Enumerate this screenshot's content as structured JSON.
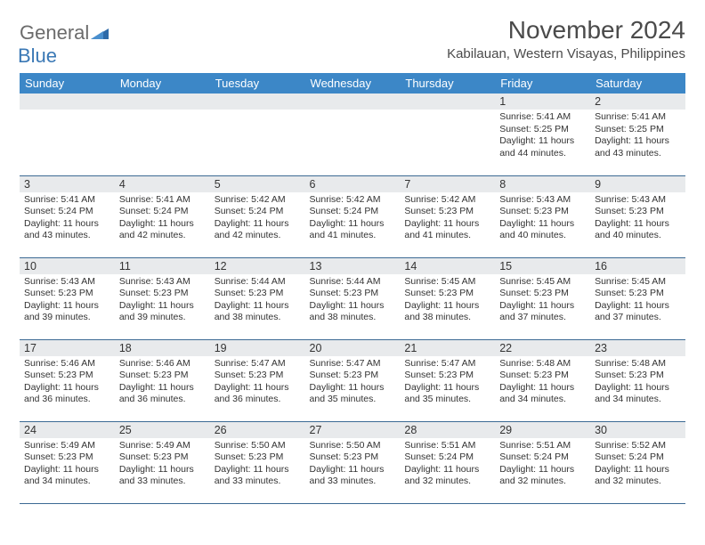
{
  "logo": {
    "part1": "General",
    "part2": "Blue"
  },
  "title": "November 2024",
  "location": "Kabilauan, Western Visayas, Philippines",
  "colors": {
    "header_bg": "#3c87c7",
    "header_fg": "#ffffff",
    "daynum_bg": "#e8eaec",
    "row_border": "#3c6a94",
    "logo_gray": "#6b6b6b",
    "logo_blue": "#3a78b5"
  },
  "dow": [
    "Sunday",
    "Monday",
    "Tuesday",
    "Wednesday",
    "Thursday",
    "Friday",
    "Saturday"
  ],
  "weeks": [
    [
      {
        "n": "",
        "sr": "",
        "ss": "",
        "dl": ""
      },
      {
        "n": "",
        "sr": "",
        "ss": "",
        "dl": ""
      },
      {
        "n": "",
        "sr": "",
        "ss": "",
        "dl": ""
      },
      {
        "n": "",
        "sr": "",
        "ss": "",
        "dl": ""
      },
      {
        "n": "",
        "sr": "",
        "ss": "",
        "dl": ""
      },
      {
        "n": "1",
        "sr": "Sunrise: 5:41 AM",
        "ss": "Sunset: 5:25 PM",
        "dl": "Daylight: 11 hours and 44 minutes."
      },
      {
        "n": "2",
        "sr": "Sunrise: 5:41 AM",
        "ss": "Sunset: 5:25 PM",
        "dl": "Daylight: 11 hours and 43 minutes."
      }
    ],
    [
      {
        "n": "3",
        "sr": "Sunrise: 5:41 AM",
        "ss": "Sunset: 5:24 PM",
        "dl": "Daylight: 11 hours and 43 minutes."
      },
      {
        "n": "4",
        "sr": "Sunrise: 5:41 AM",
        "ss": "Sunset: 5:24 PM",
        "dl": "Daylight: 11 hours and 42 minutes."
      },
      {
        "n": "5",
        "sr": "Sunrise: 5:42 AM",
        "ss": "Sunset: 5:24 PM",
        "dl": "Daylight: 11 hours and 42 minutes."
      },
      {
        "n": "6",
        "sr": "Sunrise: 5:42 AM",
        "ss": "Sunset: 5:24 PM",
        "dl": "Daylight: 11 hours and 41 minutes."
      },
      {
        "n": "7",
        "sr": "Sunrise: 5:42 AM",
        "ss": "Sunset: 5:23 PM",
        "dl": "Daylight: 11 hours and 41 minutes."
      },
      {
        "n": "8",
        "sr": "Sunrise: 5:43 AM",
        "ss": "Sunset: 5:23 PM",
        "dl": "Daylight: 11 hours and 40 minutes."
      },
      {
        "n": "9",
        "sr": "Sunrise: 5:43 AM",
        "ss": "Sunset: 5:23 PM",
        "dl": "Daylight: 11 hours and 40 minutes."
      }
    ],
    [
      {
        "n": "10",
        "sr": "Sunrise: 5:43 AM",
        "ss": "Sunset: 5:23 PM",
        "dl": "Daylight: 11 hours and 39 minutes."
      },
      {
        "n": "11",
        "sr": "Sunrise: 5:43 AM",
        "ss": "Sunset: 5:23 PM",
        "dl": "Daylight: 11 hours and 39 minutes."
      },
      {
        "n": "12",
        "sr": "Sunrise: 5:44 AM",
        "ss": "Sunset: 5:23 PM",
        "dl": "Daylight: 11 hours and 38 minutes."
      },
      {
        "n": "13",
        "sr": "Sunrise: 5:44 AM",
        "ss": "Sunset: 5:23 PM",
        "dl": "Daylight: 11 hours and 38 minutes."
      },
      {
        "n": "14",
        "sr": "Sunrise: 5:45 AM",
        "ss": "Sunset: 5:23 PM",
        "dl": "Daylight: 11 hours and 38 minutes."
      },
      {
        "n": "15",
        "sr": "Sunrise: 5:45 AM",
        "ss": "Sunset: 5:23 PM",
        "dl": "Daylight: 11 hours and 37 minutes."
      },
      {
        "n": "16",
        "sr": "Sunrise: 5:45 AM",
        "ss": "Sunset: 5:23 PM",
        "dl": "Daylight: 11 hours and 37 minutes."
      }
    ],
    [
      {
        "n": "17",
        "sr": "Sunrise: 5:46 AM",
        "ss": "Sunset: 5:23 PM",
        "dl": "Daylight: 11 hours and 36 minutes."
      },
      {
        "n": "18",
        "sr": "Sunrise: 5:46 AM",
        "ss": "Sunset: 5:23 PM",
        "dl": "Daylight: 11 hours and 36 minutes."
      },
      {
        "n": "19",
        "sr": "Sunrise: 5:47 AM",
        "ss": "Sunset: 5:23 PM",
        "dl": "Daylight: 11 hours and 36 minutes."
      },
      {
        "n": "20",
        "sr": "Sunrise: 5:47 AM",
        "ss": "Sunset: 5:23 PM",
        "dl": "Daylight: 11 hours and 35 minutes."
      },
      {
        "n": "21",
        "sr": "Sunrise: 5:47 AM",
        "ss": "Sunset: 5:23 PM",
        "dl": "Daylight: 11 hours and 35 minutes."
      },
      {
        "n": "22",
        "sr": "Sunrise: 5:48 AM",
        "ss": "Sunset: 5:23 PM",
        "dl": "Daylight: 11 hours and 34 minutes."
      },
      {
        "n": "23",
        "sr": "Sunrise: 5:48 AM",
        "ss": "Sunset: 5:23 PM",
        "dl": "Daylight: 11 hours and 34 minutes."
      }
    ],
    [
      {
        "n": "24",
        "sr": "Sunrise: 5:49 AM",
        "ss": "Sunset: 5:23 PM",
        "dl": "Daylight: 11 hours and 34 minutes."
      },
      {
        "n": "25",
        "sr": "Sunrise: 5:49 AM",
        "ss": "Sunset: 5:23 PM",
        "dl": "Daylight: 11 hours and 33 minutes."
      },
      {
        "n": "26",
        "sr": "Sunrise: 5:50 AM",
        "ss": "Sunset: 5:23 PM",
        "dl": "Daylight: 11 hours and 33 minutes."
      },
      {
        "n": "27",
        "sr": "Sunrise: 5:50 AM",
        "ss": "Sunset: 5:23 PM",
        "dl": "Daylight: 11 hours and 33 minutes."
      },
      {
        "n": "28",
        "sr": "Sunrise: 5:51 AM",
        "ss": "Sunset: 5:24 PM",
        "dl": "Daylight: 11 hours and 32 minutes."
      },
      {
        "n": "29",
        "sr": "Sunrise: 5:51 AM",
        "ss": "Sunset: 5:24 PM",
        "dl": "Daylight: 11 hours and 32 minutes."
      },
      {
        "n": "30",
        "sr": "Sunrise: 5:52 AM",
        "ss": "Sunset: 5:24 PM",
        "dl": "Daylight: 11 hours and 32 minutes."
      }
    ]
  ]
}
